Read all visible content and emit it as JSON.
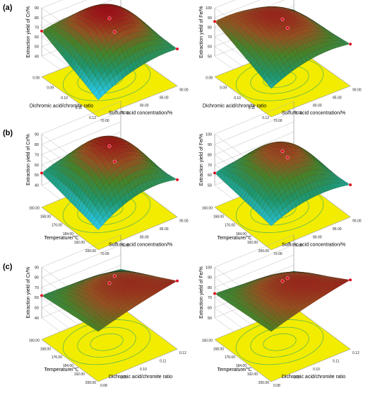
{
  "panel_labels": [
    "(a)",
    "(b)",
    "(c)"
  ],
  "colors": {
    "floor": "#f2ec00",
    "contour": "#4fb35a",
    "point": "#e0001b",
    "axis": "#444444"
  },
  "chart_data": [
    {
      "id": "a-cr",
      "type": "surface3d",
      "panel": "(a)",
      "zlabel": "Extraction yield of Cr/%",
      "zlim": [
        40,
        90
      ],
      "zticks": [
        "40",
        "50",
        "60",
        "70",
        "80",
        "90"
      ],
      "xlabel": "Dichromic acid/chromite ratio",
      "xlim": [
        0.08,
        0.12
      ],
      "xticks": [
        "0.08",
        "0.09",
        "0.10",
        "0.11",
        "0.12"
      ],
      "ylabel": "Sulfuric acid concentration/%",
      "ylim": [
        70,
        90
      ],
      "yticks": [
        "70.00",
        "75.00",
        "80.00",
        "85.00",
        "90.00"
      ],
      "corner_values": [
        66,
        57,
        36,
        59
      ],
      "center_peak": 89,
      "ridge": 0.2,
      "design_points": [
        [
          0.5,
          0.5,
          84
        ],
        [
          1.0,
          0.0,
          57
        ],
        [
          0.0,
          1.0,
          66
        ],
        [
          0.85,
          0.9,
          42
        ]
      ]
    },
    {
      "id": "a-fe",
      "type": "surface3d",
      "panel": "(a)",
      "zlabel": "Extraction yield of Fe/%",
      "zlim": [
        50,
        100
      ],
      "zticks": [
        "50",
        "60",
        "70",
        "80",
        "90",
        "100"
      ],
      "xlabel": "Dichromic acid/chromite ratio",
      "xlim": [
        0.08,
        0.12
      ],
      "xticks": [
        "0.08",
        "0.09",
        "0.10",
        "0.11",
        "0.12"
      ],
      "ylabel": "Sulfuric acid concentration/%",
      "ylim": [
        70,
        90
      ],
      "yticks": [
        "70.00",
        "75.00",
        "80.00",
        "85.00",
        "90.00"
      ],
      "corner_values": [
        86,
        72,
        58,
        66
      ],
      "center_peak": 95,
      "ridge": 0.3,
      "design_points": [
        [
          0.5,
          0.5,
          93
        ],
        [
          1.0,
          0.0,
          72
        ],
        [
          0.0,
          1.0,
          86
        ],
        [
          0.85,
          0.9,
          56
        ]
      ]
    },
    {
      "id": "b-cr",
      "type": "surface3d",
      "panel": "(b)",
      "zlabel": "Extraction yield of Cr/%",
      "zlim": [
        40,
        90
      ],
      "zticks": [
        "40",
        "50",
        "60",
        "70",
        "80",
        "90"
      ],
      "xlabel": "Temperature/℃",
      "xlim": [
        160,
        200
      ],
      "xticks": [
        "160.00",
        "168.00",
        "176.00",
        "184.00",
        "192.00",
        "200.00"
      ],
      "ylabel": "Sulfuric acid concentration/%",
      "ylim": [
        70,
        90
      ],
      "yticks": [
        "70.00",
        "75.00",
        "80.00",
        "85.00",
        "90.00"
      ],
      "corner_values": [
        52,
        55,
        38,
        46
      ],
      "center_peak": 87,
      "ridge": 0.25,
      "design_points": [
        [
          0.5,
          0.5,
          83
        ],
        [
          1.0,
          0.0,
          55
        ],
        [
          0.0,
          1.0,
          52
        ],
        [
          0.85,
          0.9,
          40
        ]
      ]
    },
    {
      "id": "b-fe",
      "type": "surface3d",
      "panel": "(b)",
      "zlabel": "Extraction yield of Fe/%",
      "zlim": [
        50,
        100
      ],
      "zticks": [
        "50",
        "60",
        "70",
        "80",
        "90",
        "100"
      ],
      "xlabel": "Temperature/℃",
      "xlim": [
        160,
        200
      ],
      "xticks": [
        "160.00",
        "168.00",
        "176.00",
        "184.00",
        "192.00",
        "200.00"
      ],
      "ylabel": "Sulfuric acid concentration/%",
      "ylim": [
        70,
        90
      ],
      "yticks": [
        "70.00",
        "75.00",
        "80.00",
        "85.00",
        "90.00"
      ],
      "corner_values": [
        62,
        60,
        52,
        55
      ],
      "center_peak": 91,
      "ridge": 0.2,
      "design_points": [
        [
          0.5,
          0.5,
          88
        ],
        [
          1.0,
          0.0,
          60
        ],
        [
          0.0,
          1.0,
          62
        ],
        [
          0.85,
          0.9,
          54
        ]
      ]
    },
    {
      "id": "c-cr",
      "type": "surface3d",
      "panel": "(c)",
      "zlabel": "Extraction yield of Cr/%",
      "zlim": [
        40,
        90
      ],
      "zticks": [
        "40",
        "50",
        "60",
        "70",
        "80",
        "90"
      ],
      "xlabel": "Temperature/℃",
      "xlim": [
        160,
        200
      ],
      "xticks": [
        "160.00",
        "168.00",
        "176.00",
        "184.00",
        "192.00",
        "200.00"
      ],
      "ylabel": "Dichromic acid/chromite ratio",
      "ylim": [
        0.08,
        0.12
      ],
      "yticks": [
        "0.08",
        "0.09",
        "0.10",
        "0.11",
        "0.12"
      ],
      "corner_values": [
        62,
        86,
        68,
        56
      ],
      "center_peak": 82,
      "ridge": 0.1,
      "design_points": [
        [
          0.5,
          0.5,
          79
        ],
        [
          1.0,
          0.0,
          86
        ],
        [
          0.0,
          1.0,
          62
        ],
        [
          0.85,
          0.9,
          58
        ]
      ]
    },
    {
      "id": "c-fe",
      "type": "surface3d",
      "panel": "(c)",
      "zlabel": "Extraction yield of Fe/%",
      "zlim": [
        50,
        100
      ],
      "zticks": [
        "50",
        "60",
        "70",
        "80",
        "90",
        "100"
      ],
      "xlabel": "Temperature/℃",
      "xlim": [
        160,
        200
      ],
      "xticks": [
        "160.00",
        "168.00",
        "176.00",
        "184.00",
        "192.00",
        "200.00"
      ],
      "ylabel": "Dichromic acid/chromite ratio",
      "ylim": [
        0.08,
        0.12
      ],
      "yticks": [
        "0.08",
        "0.09",
        "0.10",
        "0.11",
        "0.12"
      ],
      "corner_values": [
        74,
        97,
        78,
        64
      ],
      "center_peak": 93,
      "ridge": 0.1,
      "design_points": [
        [
          0.5,
          0.5,
          91
        ],
        [
          1.0,
          0.0,
          97
        ],
        [
          0.0,
          1.0,
          74
        ],
        [
          0.85,
          0.9,
          66
        ]
      ]
    }
  ]
}
